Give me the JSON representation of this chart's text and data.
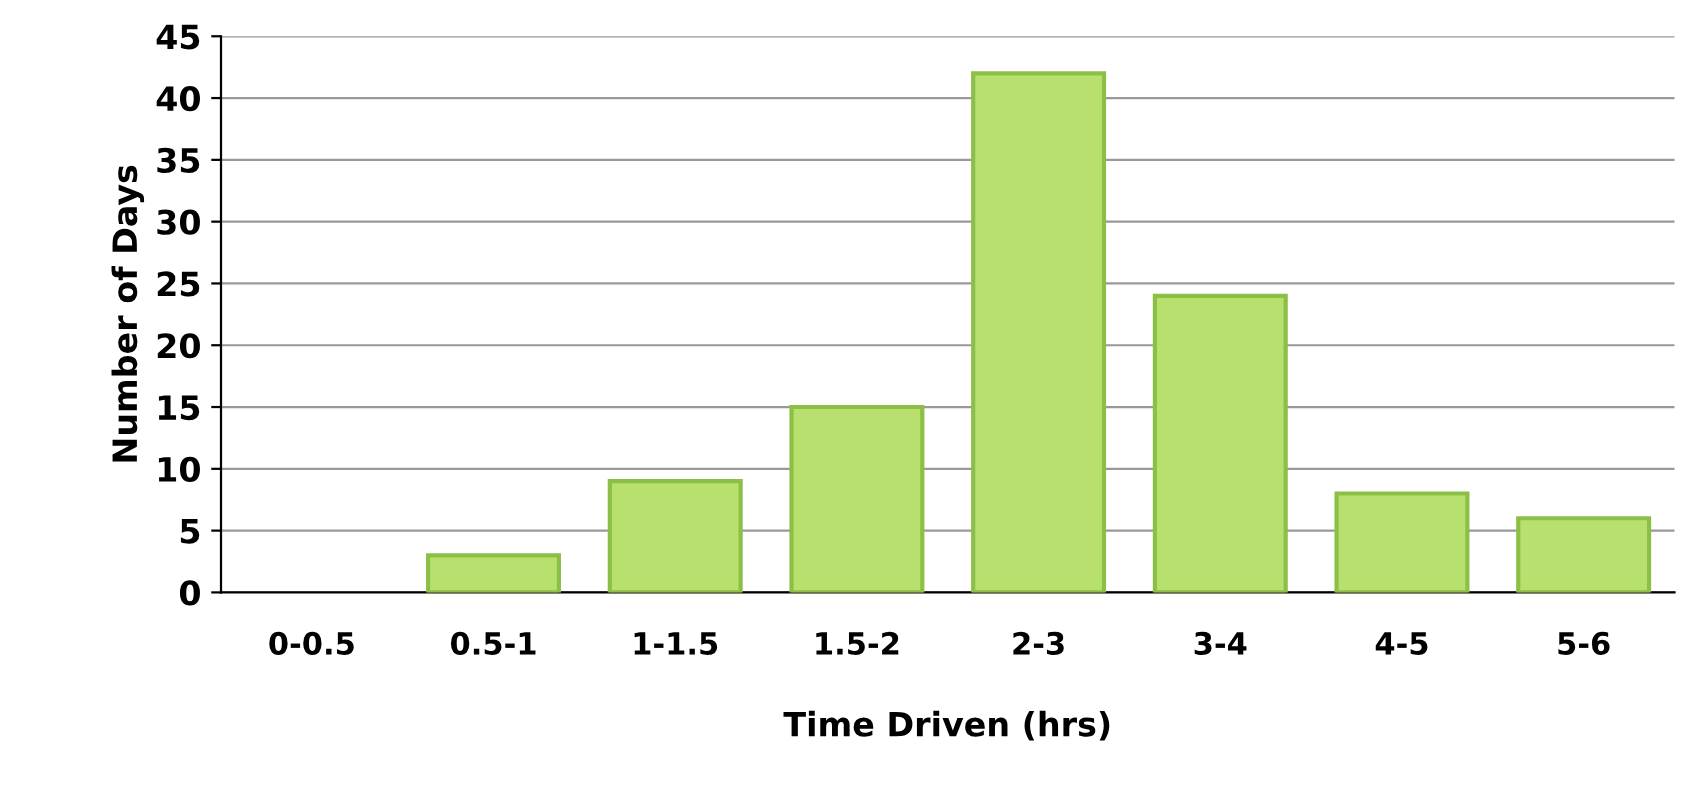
{
  "chart_data": {
    "type": "bar",
    "xlabel": "Time Driven (hrs)",
    "ylabel": "Number of Days",
    "categories": [
      "0-0.5",
      "0.5-1",
      "1-1.5",
      "1.5-2",
      "2-3",
      "3-4",
      "4-5",
      "5-6"
    ],
    "values": [
      0,
      3,
      9,
      15,
      42,
      24,
      8,
      6
    ],
    "color": "#b8e06e",
    "ylim": [
      0,
      45
    ],
    "yticks": [
      0,
      5,
      10,
      15,
      20,
      25,
      30,
      35,
      40,
      45
    ],
    "grid": "y",
    "legend": false
  }
}
